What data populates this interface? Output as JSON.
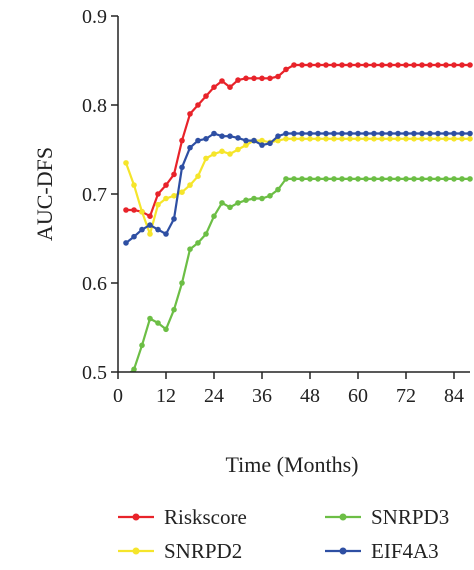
{
  "chart_data": {
    "type": "line",
    "title": "",
    "xlabel": "Time (Months)",
    "ylabel": "AUC-DFS",
    "xlim": [
      0,
      88
    ],
    "ylim": [
      0.5,
      0.9
    ],
    "xticks": [
      0,
      12,
      24,
      36,
      48,
      60,
      72,
      84
    ],
    "yticks": [
      0.5,
      0.6,
      0.7,
      0.8,
      0.9
    ],
    "xtick_labels": [
      "0",
      "12",
      "24",
      "36",
      "48",
      "60",
      "72",
      "84"
    ],
    "ytick_labels": [
      "0.5",
      "0.6",
      "0.7",
      "0.8",
      "0.9"
    ],
    "grid": false,
    "legend_position": "bottom",
    "x": [
      2,
      4,
      6,
      8,
      10,
      12,
      14,
      16,
      18,
      20,
      22,
      24,
      26,
      28,
      30,
      32,
      34,
      36,
      38,
      40,
      42,
      44,
      46,
      48,
      50,
      52,
      54,
      56,
      58,
      60,
      62,
      64,
      66,
      68,
      70,
      72,
      74,
      76,
      78,
      80,
      82,
      84,
      86,
      88
    ],
    "series": [
      {
        "name": "Riskscore",
        "color": "#e8232a",
        "values": [
          0.682,
          0.682,
          0.68,
          0.675,
          0.7,
          0.71,
          0.722,
          0.76,
          0.79,
          0.8,
          0.81,
          0.82,
          0.827,
          0.82,
          0.828,
          0.83,
          0.83,
          0.83,
          0.83,
          0.832,
          0.84,
          0.845,
          0.845,
          0.845,
          0.845,
          0.845,
          0.845,
          0.845,
          0.845,
          0.845,
          0.845,
          0.845,
          0.845,
          0.845,
          0.845,
          0.845,
          0.845,
          0.845,
          0.845,
          0.845,
          0.845,
          0.845,
          0.845,
          0.845
        ]
      },
      {
        "name": "SNRPD2",
        "color": "#f5e52b",
        "values": [
          0.735,
          0.71,
          0.68,
          0.655,
          0.688,
          0.695,
          0.698,
          0.702,
          0.71,
          0.72,
          0.74,
          0.745,
          0.748,
          0.745,
          0.75,
          0.755,
          0.76,
          0.76,
          0.758,
          0.76,
          0.762,
          0.762,
          0.762,
          0.762,
          0.762,
          0.762,
          0.762,
          0.762,
          0.762,
          0.762,
          0.762,
          0.762,
          0.762,
          0.762,
          0.762,
          0.762,
          0.762,
          0.762,
          0.762,
          0.762,
          0.762,
          0.762,
          0.762,
          0.762
        ]
      },
      {
        "name": "SNRPD3",
        "color": "#6cbe45",
        "values": [
          0.495,
          0.503,
          0.53,
          0.56,
          0.555,
          0.548,
          0.57,
          0.6,
          0.638,
          0.645,
          0.655,
          0.675,
          0.69,
          0.685,
          0.69,
          0.693,
          0.695,
          0.695,
          0.698,
          0.705,
          0.717,
          0.717,
          0.717,
          0.717,
          0.717,
          0.717,
          0.717,
          0.717,
          0.717,
          0.717,
          0.717,
          0.717,
          0.717,
          0.717,
          0.717,
          0.717,
          0.717,
          0.717,
          0.717,
          0.717,
          0.717,
          0.717,
          0.717,
          0.717
        ]
      },
      {
        "name": "EIF4A3",
        "color": "#2e4fa3",
        "values": [
          0.645,
          0.652,
          0.66,
          0.665,
          0.66,
          0.655,
          0.672,
          0.73,
          0.752,
          0.76,
          0.762,
          0.768,
          0.765,
          0.765,
          0.763,
          0.76,
          0.76,
          0.755,
          0.757,
          0.765,
          0.768,
          0.768,
          0.768,
          0.768,
          0.768,
          0.768,
          0.768,
          0.768,
          0.768,
          0.768,
          0.768,
          0.768,
          0.768,
          0.768,
          0.768,
          0.768,
          0.768,
          0.768,
          0.768,
          0.768,
          0.768,
          0.768,
          0.768,
          0.768
        ]
      }
    ]
  }
}
